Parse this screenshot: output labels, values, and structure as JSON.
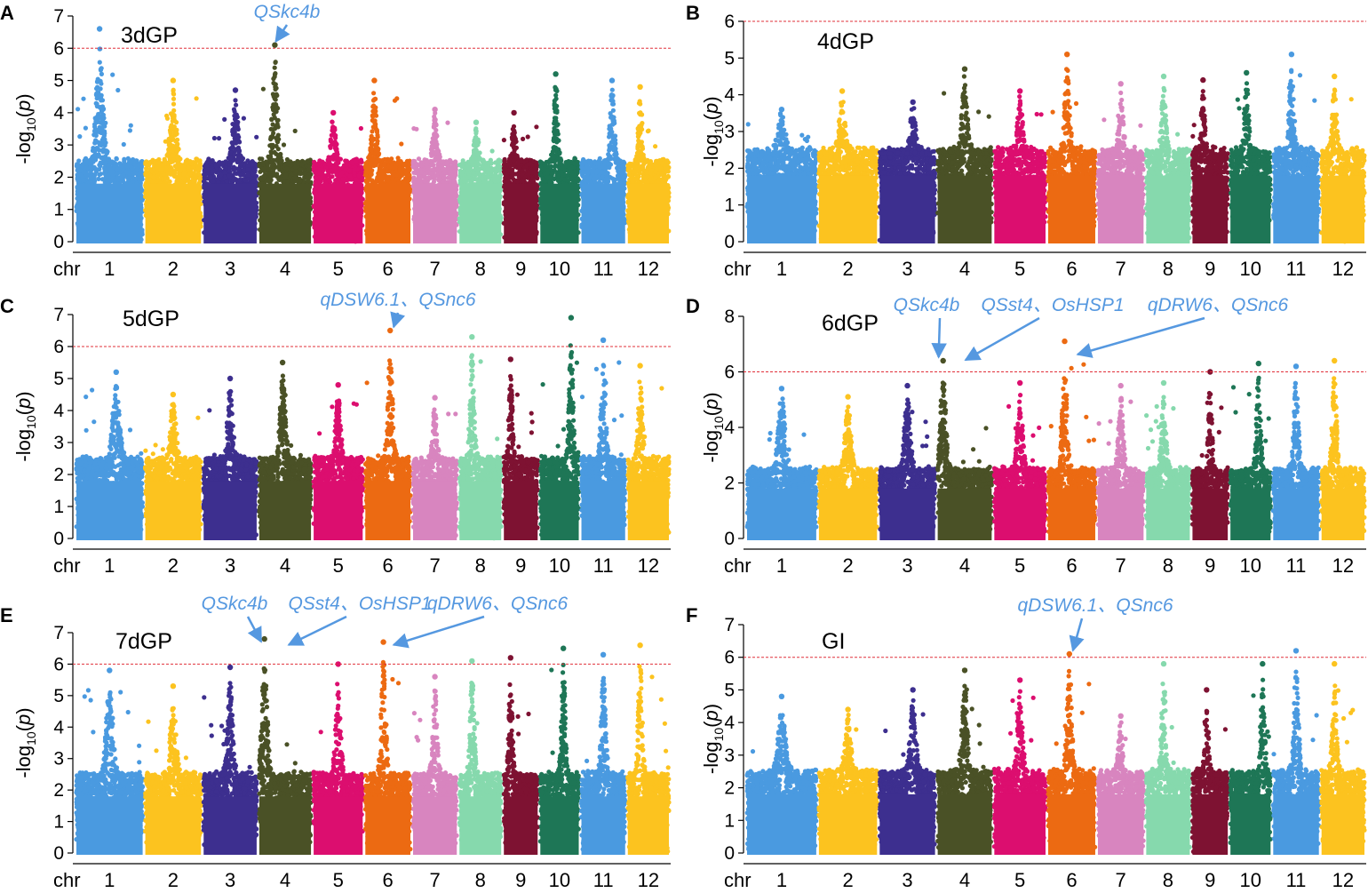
{
  "figure": {
    "chromosomes": [
      "1",
      "2",
      "3",
      "4",
      "5",
      "6",
      "7",
      "8",
      "9",
      "10",
      "11",
      "12"
    ],
    "chr_axis_label": "chr",
    "ylabel": {
      "prefix": "-log",
      "subscript": "10",
      "suffix": "(p)"
    },
    "chr_colors": [
      "#4a9ae0",
      "#fcc31f",
      "#3d2f8f",
      "#4a5126",
      "#dc0e6f",
      "#ec6a12",
      "#d885bf",
      "#86d9ad",
      "#7e1232",
      "#1e7656",
      "#4a9ae0",
      "#fcc31f"
    ],
    "threshold": {
      "value": 6,
      "color": "#e0303a"
    },
    "annotation_color": "#5598e0"
  },
  "chart_data": [
    {
      "panel": "A",
      "title": "3dGP",
      "type": "scatter",
      "ylim": [
        0,
        7
      ],
      "yticks": [
        0,
        1,
        2,
        3,
        4,
        5,
        6,
        7
      ],
      "peaks": [
        {
          "chr": 1,
          "max": 6.6,
          "pos": 0.35
        },
        {
          "chr": 2,
          "max": 5.0,
          "pos": 0.5
        },
        {
          "chr": 3,
          "max": 4.7,
          "pos": 0.6
        },
        {
          "chr": 4,
          "max": 6.1,
          "pos": 0.3
        },
        {
          "chr": 5,
          "max": 4.0,
          "pos": 0.4
        },
        {
          "chr": 6,
          "max": 5.0,
          "pos": 0.2
        },
        {
          "chr": 7,
          "max": 4.1,
          "pos": 0.5
        },
        {
          "chr": 8,
          "max": 3.7,
          "pos": 0.4
        },
        {
          "chr": 9,
          "max": 4.0,
          "pos": 0.3
        },
        {
          "chr": 10,
          "max": 5.2,
          "pos": 0.4
        },
        {
          "chr": 11,
          "max": 5.0,
          "pos": 0.7
        },
        {
          "chr": 12,
          "max": 4.8,
          "pos": 0.3
        }
      ],
      "annotations": [
        {
          "text": "QSkc4b",
          "chr": 4,
          "pos": 0.25,
          "value": 6.1
        }
      ]
    },
    {
      "panel": "B",
      "title": "4dGP",
      "type": "scatter",
      "ylim": [
        0,
        6
      ],
      "yticks": [
        0,
        1,
        2,
        3,
        4,
        5,
        6
      ],
      "peaks": [
        {
          "chr": 1,
          "max": 3.6,
          "pos": 0.5
        },
        {
          "chr": 2,
          "max": 4.1,
          "pos": 0.4
        },
        {
          "chr": 3,
          "max": 3.8,
          "pos": 0.6
        },
        {
          "chr": 4,
          "max": 4.7,
          "pos": 0.5
        },
        {
          "chr": 5,
          "max": 4.1,
          "pos": 0.5
        },
        {
          "chr": 6,
          "max": 5.1,
          "pos": 0.4
        },
        {
          "chr": 7,
          "max": 4.3,
          "pos": 0.5
        },
        {
          "chr": 8,
          "max": 4.5,
          "pos": 0.4
        },
        {
          "chr": 9,
          "max": 4.4,
          "pos": 0.3
        },
        {
          "chr": 10,
          "max": 4.6,
          "pos": 0.4
        },
        {
          "chr": 11,
          "max": 5.1,
          "pos": 0.4
        },
        {
          "chr": 12,
          "max": 4.5,
          "pos": 0.3
        }
      ],
      "annotations": []
    },
    {
      "panel": "C",
      "title": "5dGP",
      "type": "scatter",
      "ylim": [
        0,
        7
      ],
      "yticks": [
        0,
        1,
        2,
        3,
        4,
        5,
        6,
        7
      ],
      "peaks": [
        {
          "chr": 1,
          "max": 5.2,
          "pos": 0.6
        },
        {
          "chr": 2,
          "max": 4.5,
          "pos": 0.5
        },
        {
          "chr": 3,
          "max": 5.0,
          "pos": 0.5
        },
        {
          "chr": 4,
          "max": 5.5,
          "pos": 0.45
        },
        {
          "chr": 5,
          "max": 4.8,
          "pos": 0.5
        },
        {
          "chr": 6,
          "max": 6.5,
          "pos": 0.55
        },
        {
          "chr": 7,
          "max": 4.4,
          "pos": 0.5
        },
        {
          "chr": 8,
          "max": 6.3,
          "pos": 0.3
        },
        {
          "chr": 9,
          "max": 5.6,
          "pos": 0.2
        },
        {
          "chr": 10,
          "max": 6.9,
          "pos": 0.8
        },
        {
          "chr": 11,
          "max": 6.2,
          "pos": 0.5
        },
        {
          "chr": 12,
          "max": 5.4,
          "pos": 0.3
        }
      ],
      "annotations": [
        {
          "text": "qDSW6.1、QSnc6",
          "chr": 6,
          "pos": 0.55,
          "value": 6.5
        }
      ]
    },
    {
      "panel": "D",
      "title": "6dGP",
      "type": "scatter",
      "ylim": [
        0,
        8
      ],
      "yticks": [
        0,
        2,
        4,
        6,
        8
      ],
      "peaks": [
        {
          "chr": 1,
          "max": 5.4,
          "pos": 0.5
        },
        {
          "chr": 2,
          "max": 5.1,
          "pos": 0.5
        },
        {
          "chr": 3,
          "max": 5.5,
          "pos": 0.5
        },
        {
          "chr": 4,
          "max": 6.4,
          "pos": 0.1
        },
        {
          "chr": 5,
          "max": 5.6,
          "pos": 0.5
        },
        {
          "chr": 6,
          "max": 7.1,
          "pos": 0.35
        },
        {
          "chr": 7,
          "max": 5.5,
          "pos": 0.5
        },
        {
          "chr": 8,
          "max": 5.6,
          "pos": 0.4
        },
        {
          "chr": 9,
          "max": 6.0,
          "pos": 0.5
        },
        {
          "chr": 10,
          "max": 6.3,
          "pos": 0.7
        },
        {
          "chr": 11,
          "max": 6.2,
          "pos": 0.5
        },
        {
          "chr": 12,
          "max": 6.4,
          "pos": 0.3
        }
      ],
      "annotations": [
        {
          "text": "QSkc4b",
          "chr": 4,
          "pos": 0.05,
          "value": 6.4
        },
        {
          "text": "QSst4、OsHSP1",
          "chr": 4,
          "pos": 0.45,
          "value": 6.3
        },
        {
          "text": "qDRW6、QSnc6",
          "chr": 6,
          "pos": 0.55,
          "value": 6.5
        }
      ]
    },
    {
      "panel": "E",
      "title": "7dGP",
      "type": "scatter",
      "ylim": [
        0,
        7
      ],
      "yticks": [
        0,
        1,
        2,
        3,
        4,
        5,
        6,
        7
      ],
      "peaks": [
        {
          "chr": 1,
          "max": 5.8,
          "pos": 0.5
        },
        {
          "chr": 2,
          "max": 5.3,
          "pos": 0.5
        },
        {
          "chr": 3,
          "max": 5.9,
          "pos": 0.5
        },
        {
          "chr": 4,
          "max": 6.8,
          "pos": 0.1
        },
        {
          "chr": 5,
          "max": 6.0,
          "pos": 0.5
        },
        {
          "chr": 6,
          "max": 6.7,
          "pos": 0.4
        },
        {
          "chr": 7,
          "max": 5.6,
          "pos": 0.5
        },
        {
          "chr": 8,
          "max": 6.1,
          "pos": 0.3
        },
        {
          "chr": 9,
          "max": 6.2,
          "pos": 0.2
        },
        {
          "chr": 10,
          "max": 6.5,
          "pos": 0.6
        },
        {
          "chr": 11,
          "max": 6.3,
          "pos": 0.5
        },
        {
          "chr": 12,
          "max": 6.6,
          "pos": 0.3
        }
      ],
      "annotations": [
        {
          "text": "QSkc4b",
          "chr": 4,
          "pos": 0.07,
          "value": 6.6
        },
        {
          "text": "QSst4、OsHSP1",
          "chr": 4,
          "pos": 0.5,
          "value": 6.5
        },
        {
          "text": "qDRW6、QSnc6",
          "chr": 6,
          "pos": 0.55,
          "value": 6.5
        }
      ]
    },
    {
      "panel": "F",
      "title": "GI",
      "type": "scatter",
      "ylim": [
        0,
        7
      ],
      "yticks": [
        0,
        1,
        2,
        3,
        4,
        5,
        6,
        7
      ],
      "peaks": [
        {
          "chr": 1,
          "max": 4.8,
          "pos": 0.5
        },
        {
          "chr": 2,
          "max": 4.4,
          "pos": 0.5
        },
        {
          "chr": 3,
          "max": 5.0,
          "pos": 0.6
        },
        {
          "chr": 4,
          "max": 5.6,
          "pos": 0.5
        },
        {
          "chr": 5,
          "max": 5.3,
          "pos": 0.5
        },
        {
          "chr": 6,
          "max": 6.1,
          "pos": 0.45
        },
        {
          "chr": 7,
          "max": 4.2,
          "pos": 0.5
        },
        {
          "chr": 8,
          "max": 5.8,
          "pos": 0.4
        },
        {
          "chr": 9,
          "max": 5.0,
          "pos": 0.4
        },
        {
          "chr": 10,
          "max": 5.8,
          "pos": 0.8
        },
        {
          "chr": 11,
          "max": 6.2,
          "pos": 0.5
        },
        {
          "chr": 12,
          "max": 5.8,
          "pos": 0.3
        }
      ],
      "annotations": [
        {
          "text": "qDSW6.1、QSnc6",
          "chr": 6,
          "pos": 0.45,
          "value": 6.1
        }
      ]
    }
  ]
}
